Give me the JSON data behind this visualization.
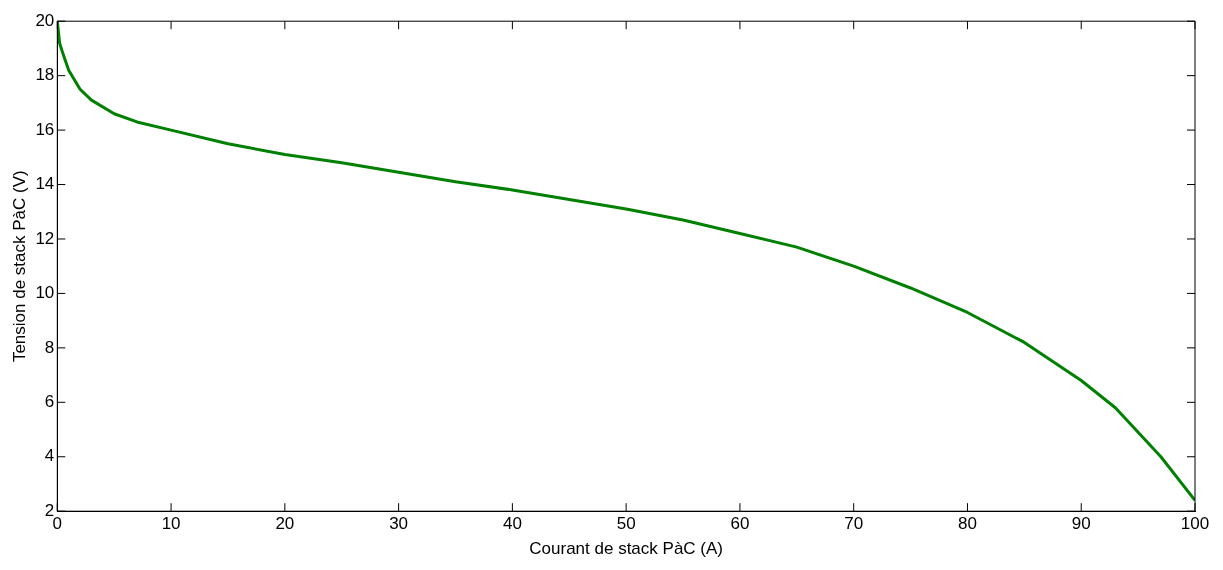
{
  "chart_data": {
    "type": "line",
    "xlabel": "Courant de stack PàC (A)",
    "ylabel": "Tension de stack PàC (V)",
    "x": [
      0,
      0.2,
      0.5,
      1,
      2,
      3,
      5,
      7,
      10,
      15,
      20,
      25,
      30,
      35,
      40,
      45,
      50,
      55,
      60,
      65,
      70,
      75,
      80,
      85,
      90,
      93,
      95,
      97,
      100
    ],
    "series": [
      {
        "color": "#008000",
        "values": [
          20,
          19.2,
          18.8,
          18.2,
          17.5,
          17.1,
          16.6,
          16.3,
          16.0,
          15.5,
          15.1,
          14.8,
          14.45,
          14.1,
          13.8,
          13.45,
          13.1,
          12.7,
          12.2,
          11.7,
          11.0,
          10.2,
          9.3,
          8.2,
          6.8,
          5.8,
          4.9,
          4.0,
          2.4
        ]
      }
    ],
    "xlim": [
      0,
      100
    ],
    "xticks": [
      0,
      10,
      20,
      30,
      40,
      50,
      60,
      70,
      80,
      90,
      100
    ],
    "ylim": [
      2,
      20
    ],
    "yticks": [
      2,
      4,
      6,
      8,
      10,
      12,
      14,
      16,
      18,
      20
    ],
    "grid": false,
    "legend": false,
    "marker": "none",
    "line_style": "solid"
  }
}
